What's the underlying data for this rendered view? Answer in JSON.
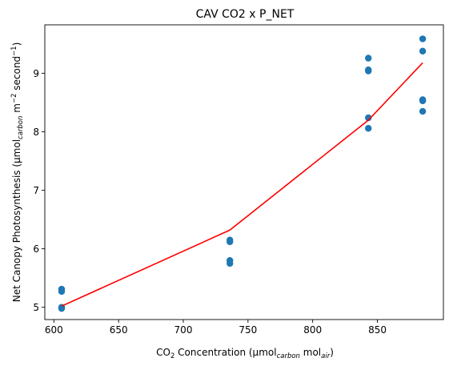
{
  "chart_data": {
    "type": "scatter",
    "title": "CAV CO2 x P_NET",
    "xlabel": {
      "parts": [
        {
          "text": "CO",
          "style": "normal"
        },
        {
          "text": "2",
          "style": "sub"
        },
        {
          "text": " Concentration (µmol",
          "style": "normal"
        },
        {
          "text": "carbon",
          "style": "sub-italic"
        },
        {
          "text": " mol",
          "style": "normal"
        },
        {
          "text": "air",
          "style": "sub-italic"
        },
        {
          "text": ")",
          "style": "normal"
        }
      ]
    },
    "ylabel": {
      "parts": [
        {
          "text": "Net Canopy Photosynthesis (µmol",
          "style": "normal"
        },
        {
          "text": "carbon",
          "style": "sub-italic"
        },
        {
          "text": " m",
          "style": "normal"
        },
        {
          "text": "−2",
          "style": "sup"
        },
        {
          "text": " second",
          "style": "normal"
        },
        {
          "text": "−1",
          "style": "sup"
        },
        {
          "text": ")",
          "style": "normal"
        }
      ]
    },
    "xlim": [
      593,
      901
    ],
    "ylim": [
      4.79,
      9.83
    ],
    "xticks": [
      600,
      650,
      700,
      750,
      800,
      850
    ],
    "yticks": [
      5,
      6,
      7,
      8,
      9
    ],
    "grid": false,
    "colors": {
      "points": "#1f77b4",
      "fit_line": "#ff0000",
      "axes": "#000000",
      "background": "#ffffff"
    },
    "series": [
      {
        "kind": "scatter",
        "points": [
          {
            "x": 606,
            "y": 5.31
          },
          {
            "x": 606,
            "y": 5.27
          },
          {
            "x": 606,
            "y": 5.0
          },
          {
            "x": 606,
            "y": 4.98
          },
          {
            "x": 736,
            "y": 6.15
          },
          {
            "x": 736,
            "y": 6.12
          },
          {
            "x": 736,
            "y": 5.8
          },
          {
            "x": 736,
            "y": 5.75
          },
          {
            "x": 843,
            "y": 9.26
          },
          {
            "x": 843,
            "y": 9.06
          },
          {
            "x": 843,
            "y": 9.04
          },
          {
            "x": 843,
            "y": 8.24
          },
          {
            "x": 843,
            "y": 8.06
          },
          {
            "x": 885,
            "y": 9.59
          },
          {
            "x": 885,
            "y": 9.38
          },
          {
            "x": 885,
            "y": 8.55
          },
          {
            "x": 885,
            "y": 8.53
          },
          {
            "x": 885,
            "y": 8.35
          }
        ]
      },
      {
        "kind": "line",
        "points": [
          {
            "x": 606,
            "y": 5.02
          },
          {
            "x": 736,
            "y": 6.32
          },
          {
            "x": 843,
            "y": 8.2
          },
          {
            "x": 885,
            "y": 9.18
          }
        ]
      }
    ]
  }
}
